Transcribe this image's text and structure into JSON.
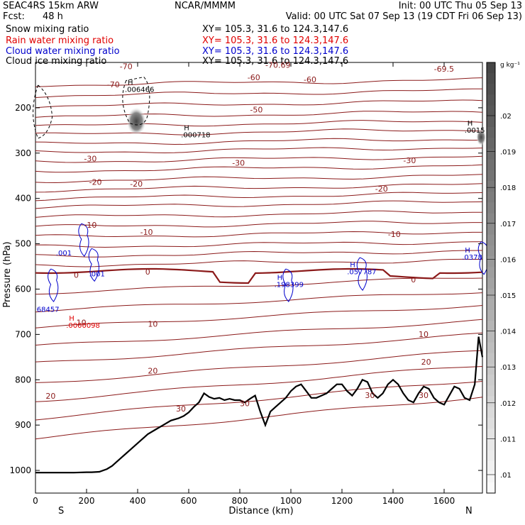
{
  "header": {
    "model": "SEAC4RS 15km ARW",
    "source": "NCAR/MMMM",
    "init": "Init: 00 UTC Thu 05 Sep 13",
    "fcst_label": "Fcst:",
    "fcst_value": "48 h",
    "valid": "Valid: 00 UTC Sat 07 Sep 13 (19 CDT Fri 06 Sep 13)"
  },
  "fields": [
    {
      "name": "Snow mixing ratio",
      "xy": "XY= 105.3, 31.6 to 124.3,147.6",
      "color": "#000000"
    },
    {
      "name": "Rain water mixing ratio",
      "xy": "XY= 105.3, 31.6 to 124.3,147.6",
      "color": "#e00000"
    },
    {
      "name": "Cloud water mixing ratio",
      "xy": "XY= 105.3, 31.6 to 124.3,147.6",
      "color": "#0000cc"
    },
    {
      "name": "Cloud ice mixing ratio",
      "xy": "XY= 105.3, 31.6 to 124.3,147.6",
      "color": "#000000"
    }
  ],
  "chart_data": {
    "type": "cross-section",
    "xlabel": "Distance (km)",
    "ylabel": "Pressure (hPa)",
    "xlim": [
      0,
      1750
    ],
    "ylim": [
      1050,
      100
    ],
    "x_ticks": [
      0,
      200,
      400,
      600,
      800,
      1000,
      1200,
      1400,
      1600
    ],
    "y_ticks": [
      200,
      300,
      400,
      500,
      600,
      700,
      800,
      900,
      1000
    ],
    "end_labels": {
      "left": "S",
      "right": "N"
    },
    "colorbar": {
      "unit": "g kg⁻¹",
      "ticks": [
        ".02",
        ".019",
        ".018",
        ".017",
        ".016",
        ".015",
        ".014",
        ".013",
        ".012",
        ".011",
        ".01"
      ]
    },
    "terrain": {
      "x": [
        0,
        50,
        100,
        150,
        200,
        220,
        250,
        280,
        300,
        330,
        360,
        400,
        440,
        470,
        500,
        530,
        560,
        580,
        600,
        620,
        640,
        660,
        680,
        700,
        720,
        740,
        760,
        780,
        800,
        820,
        840,
        860,
        880,
        900,
        920,
        940,
        960,
        980,
        1000,
        1020,
        1040,
        1060,
        1080,
        1100,
        1120,
        1140,
        1160,
        1180,
        1200,
        1220,
        1240,
        1260,
        1280,
        1300,
        1320,
        1340,
        1360,
        1380,
        1400,
        1420,
        1440,
        1460,
        1480,
        1500,
        1520,
        1540,
        1560,
        1580,
        1600,
        1620,
        1640,
        1660,
        1680,
        1700,
        1720,
        1735,
        1750
      ],
      "p": [
        1005,
        1005,
        1005,
        1005,
        1004,
        1004,
        1003,
        997,
        990,
        975,
        960,
        940,
        920,
        910,
        900,
        890,
        885,
        880,
        872,
        860,
        850,
        830,
        838,
        842,
        840,
        845,
        842,
        845,
        845,
        850,
        842,
        835,
        870,
        900,
        870,
        860,
        850,
        840,
        825,
        815,
        810,
        825,
        840,
        840,
        835,
        830,
        820,
        810,
        810,
        825,
        835,
        820,
        800,
        805,
        830,
        840,
        830,
        810,
        800,
        810,
        830,
        845,
        850,
        830,
        815,
        820,
        840,
        850,
        855,
        835,
        815,
        820,
        840,
        845,
        810,
        705,
        750
      ]
    },
    "contour_labels": [
      {
        "x": 330,
        "p": 115,
        "text": "-70"
      },
      {
        "x": 900,
        "p": 112,
        "text": "-70.69"
      },
      {
        "x": 1560,
        "p": 120,
        "text": "-69.5"
      },
      {
        "x": 280,
        "p": 155,
        "text": "-70"
      },
      {
        "x": 830,
        "p": 139,
        "text": "-60"
      },
      {
        "x": 1050,
        "p": 144,
        "text": "-60"
      },
      {
        "x": 840,
        "p": 210,
        "text": "-50"
      },
      {
        "x": 190,
        "p": 318,
        "text": "-30"
      },
      {
        "x": 770,
        "p": 328,
        "text": "-30"
      },
      {
        "x": 1440,
        "p": 322,
        "text": "-30"
      },
      {
        "x": 210,
        "p": 370,
        "text": "-20"
      },
      {
        "x": 370,
        "p": 374,
        "text": "-20"
      },
      {
        "x": 1330,
        "p": 385,
        "text": "-20"
      },
      {
        "x": 190,
        "p": 465,
        "text": "-10"
      },
      {
        "x": 410,
        "p": 480,
        "text": "-10"
      },
      {
        "x": 1380,
        "p": 485,
        "text": "-10"
      },
      {
        "x": 150,
        "p": 575,
        "text": "0"
      },
      {
        "x": 430,
        "p": 568,
        "text": "0"
      },
      {
        "x": 1470,
        "p": 585,
        "text": "0"
      },
      {
        "x": 160,
        "p": 680,
        "text": "10"
      },
      {
        "x": 440,
        "p": 683,
        "text": "10"
      },
      {
        "x": 1500,
        "p": 706,
        "text": "10"
      },
      {
        "x": 1510,
        "p": 767,
        "text": "20"
      },
      {
        "x": 440,
        "p": 786,
        "text": "20"
      },
      {
        "x": 40,
        "p": 842,
        "text": "20"
      },
      {
        "x": 550,
        "p": 870,
        "text": "30"
      },
      {
        "x": 800,
        "p": 858,
        "text": "30"
      },
      {
        "x": 1290,
        "p": 840,
        "text": "30"
      },
      {
        "x": 1500,
        "p": 840,
        "text": "30"
      }
    ],
    "max_labels": [
      {
        "x": 350,
        "p": 165,
        "h": "H",
        "v": ".006466",
        "color": "#000000"
      },
      {
        "x": 570,
        "p": 265,
        "h": "H",
        "v": ".000718",
        "color": "#000000"
      },
      {
        "x": 1680,
        "p": 255,
        "h": "H",
        "v": ".0015",
        "color": "#000000"
      },
      {
        "x": 80,
        "p": 526,
        "h": "",
        "v": ".001",
        "color": "#0000cc"
      },
      {
        "x": 210,
        "p": 572,
        "h": "",
        "v": ".001",
        "color": "#0000cc"
      },
      {
        "x": 935,
        "p": 595,
        "h": "H",
        "v": ".198399",
        "color": "#0000cc"
      },
      {
        "x": 1220,
        "p": 567,
        "h": "H",
        "v": ".057787",
        "color": "#0000cc"
      },
      {
        "x": 1670,
        "p": 535,
        "h": "H",
        "v": ".0378",
        "color": "#0000cc"
      },
      {
        "x": 5,
        "p": 650,
        "h": "",
        "v": "68457",
        "color": "#0000cc"
      },
      {
        "x": 120,
        "p": 685,
        "h": "H",
        "v": ".0000098",
        "color": "#e00000"
      }
    ]
  }
}
